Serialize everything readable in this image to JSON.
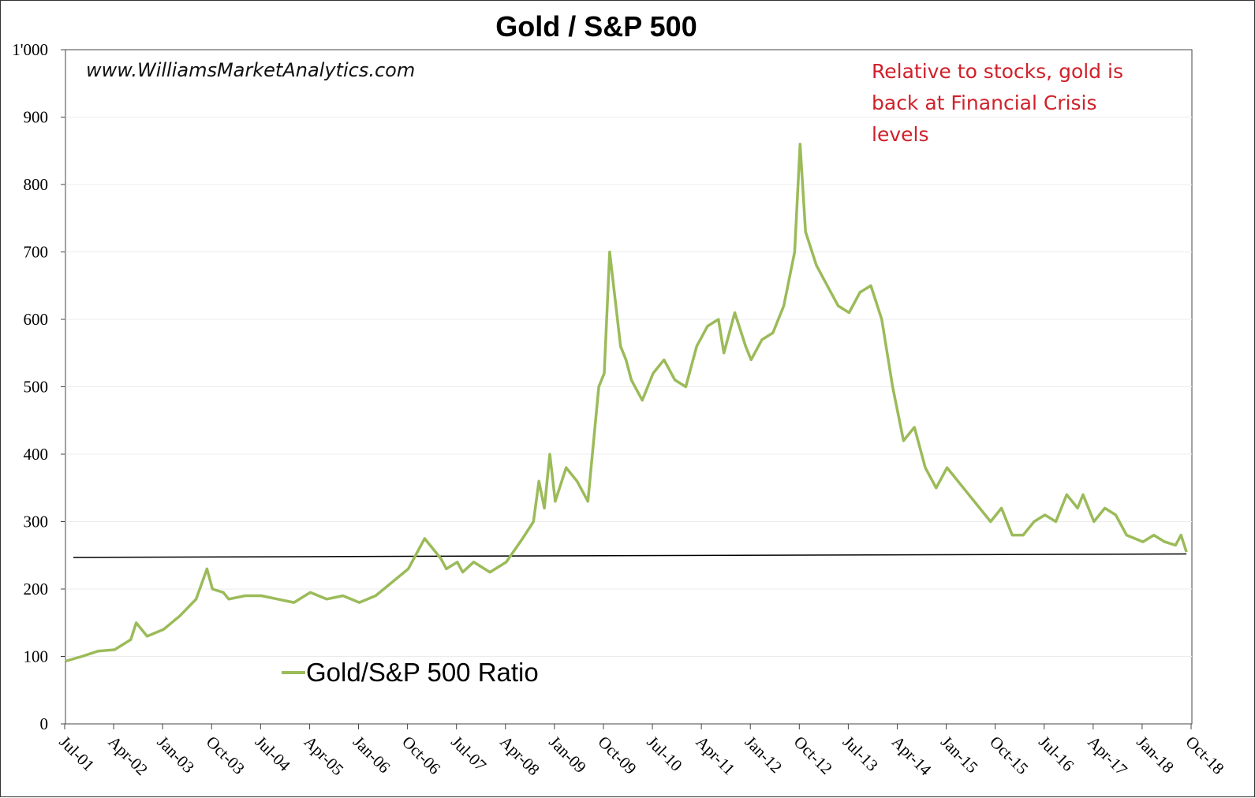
{
  "chart_data": {
    "type": "line",
    "title": "Gold / S&P 500",
    "watermark": "www.WilliamsMarketAnalytics.com",
    "annotation": [
      "Relative to stocks, gold is",
      "back at Financial Crisis",
      "levels"
    ],
    "xlabel": "",
    "ylabel": "",
    "ylim": [
      0,
      1000
    ],
    "y_ticks": [
      0,
      100,
      200,
      300,
      400,
      500,
      600,
      700,
      800,
      900,
      1000
    ],
    "y_tick_labels": [
      "0",
      "100",
      "200",
      "300",
      "400",
      "500",
      "600",
      "700",
      "800",
      "900",
      "1'000"
    ],
    "xlim": [
      "2001-07",
      "2018-10"
    ],
    "x_tick_labels": [
      "Jul-01",
      "Apr-02",
      "Jan-03",
      "Oct-03",
      "Jul-04",
      "Apr-05",
      "Jan-06",
      "Oct-06",
      "Jul-07",
      "Apr-08",
      "Jan-09",
      "Oct-09",
      "Jul-10",
      "Apr-11",
      "Jan-12",
      "Oct-12",
      "Jul-13",
      "Apr-14",
      "Jan-15",
      "Oct-15",
      "Jul-16",
      "Apr-17",
      "Jan-18",
      "Oct-18"
    ],
    "grid": true,
    "legend_position": "bottom-left",
    "series": [
      {
        "name": "Gold/S&P 500 Ratio",
        "color": "#9bbb59",
        "x": [
          "2001-07",
          "2001-10",
          "2002-01",
          "2002-04",
          "2002-07",
          "2002-08",
          "2002-10",
          "2003-01",
          "2003-04",
          "2003-07",
          "2003-09",
          "2003-10",
          "2003-12",
          "2004-01",
          "2004-04",
          "2004-07",
          "2004-10",
          "2005-01",
          "2005-04",
          "2005-07",
          "2005-10",
          "2006-01",
          "2006-04",
          "2006-07",
          "2006-10",
          "2007-01",
          "2007-04",
          "2007-05",
          "2007-07",
          "2007-08",
          "2007-10",
          "2008-01",
          "2008-04",
          "2008-07",
          "2008-09",
          "2008-10",
          "2008-11",
          "2008-12",
          "2009-01",
          "2009-03",
          "2009-05",
          "2009-07",
          "2009-09",
          "2009-10",
          "2009-11",
          "2010-01",
          "2010-02",
          "2010-03",
          "2010-05",
          "2010-07",
          "2010-09",
          "2010-11",
          "2011-01",
          "2011-03",
          "2011-05",
          "2011-07",
          "2011-08",
          "2011-10",
          "2011-12",
          "2012-01",
          "2012-03",
          "2012-05",
          "2012-07",
          "2012-09",
          "2012-10",
          "2012-11",
          "2013-01",
          "2013-03",
          "2013-05",
          "2013-07",
          "2013-09",
          "2013-11",
          "2014-01",
          "2014-03",
          "2014-05",
          "2014-07",
          "2014-09",
          "2014-11",
          "2015-01",
          "2015-03",
          "2015-05",
          "2015-07",
          "2015-09",
          "2015-11",
          "2016-01",
          "2016-03",
          "2016-05",
          "2016-07",
          "2016-09",
          "2016-11",
          "2017-01",
          "2017-02",
          "2017-04",
          "2017-06",
          "2017-08",
          "2017-10",
          "2018-01",
          "2018-03",
          "2018-05",
          "2018-07",
          "2018-08",
          "2018-09"
        ],
        "y": [
          93,
          100,
          108,
          110,
          125,
          150,
          130,
          140,
          160,
          185,
          230,
          200,
          195,
          185,
          190,
          190,
          185,
          180,
          195,
          185,
          190,
          180,
          190,
          210,
          230,
          275,
          245,
          230,
          240,
          225,
          240,
          225,
          240,
          275,
          300,
          360,
          320,
          400,
          330,
          380,
          360,
          330,
          500,
          520,
          700,
          560,
          540,
          510,
          480,
          520,
          540,
          510,
          500,
          560,
          590,
          600,
          550,
          610,
          560,
          540,
          570,
          580,
          620,
          700,
          860,
          730,
          680,
          650,
          620,
          610,
          640,
          650,
          600,
          500,
          420,
          440,
          380,
          350,
          380,
          360,
          340,
          320,
          300,
          320,
          280,
          280,
          300,
          310,
          300,
          340,
          320,
          340,
          300,
          320,
          310,
          280,
          270,
          280,
          270,
          265,
          280,
          255
        ]
      }
    ],
    "reference_line": {
      "x": [
        "2001-07",
        "2018-09"
      ],
      "y": [
        247,
        252
      ],
      "color": "#000000"
    }
  }
}
